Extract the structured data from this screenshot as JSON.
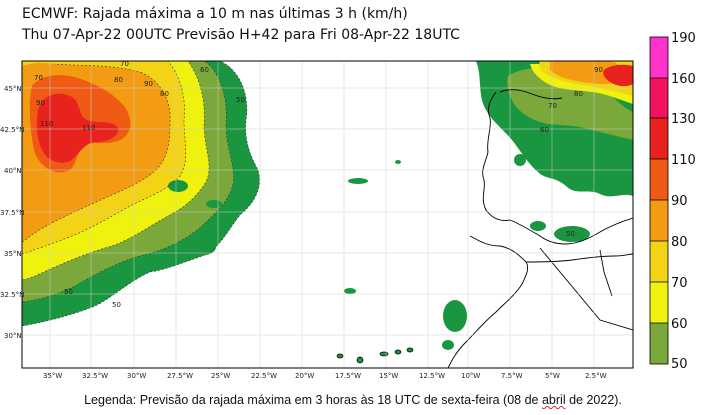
{
  "header": {
    "title_line1": "ECMWF: Rajada máxima a 10 m nas últimas 3 h (km/h)",
    "title_line2": "Thu 07-Apr-22 00UTC Previsão H+42 para Fri 08-Apr-22 18UTC"
  },
  "map": {
    "lat_labels": [
      "45°N",
      "42.5°N",
      "40°N",
      "37.5°N",
      "35°N",
      "32.5°N",
      "30°N"
    ],
    "lon_labels": [
      "35°W",
      "32.5°W",
      "30°W",
      "27.5°W",
      "25°W",
      "22.5°W",
      "20°W",
      "17.5°W",
      "15°W",
      "12.5°W",
      "10°W",
      "7.5°W",
      "5°W",
      "2.5°W"
    ],
    "contour_labels": [
      "70",
      "80",
      "90",
      "110",
      "110",
      "80",
      "90",
      "70",
      "60",
      "50",
      "50",
      "50",
      "90",
      "80",
      "70",
      "60",
      "50"
    ]
  },
  "colorbar": {
    "levels": [
      "190",
      "160",
      "130",
      "110",
      "90",
      "80",
      "70",
      "60",
      "50"
    ],
    "colors": [
      "#ff33cc",
      "#f1135e",
      "#e8231e",
      "#ef5a14",
      "#f39b13",
      "#f3d315",
      "#eef20e",
      "#7aa83a",
      "#1a9641"
    ]
  },
  "caption": {
    "prefix": "Legenda: Previsão da rajada máxima em 3 horas às 18 UTC de sexta-feira (08 de ",
    "underlined": "abril",
    "suffix": " de 2022)."
  }
}
